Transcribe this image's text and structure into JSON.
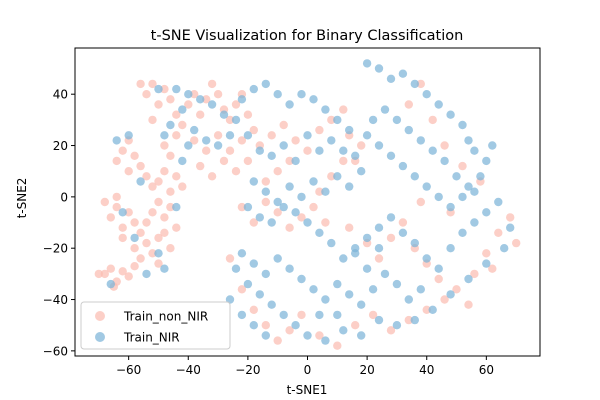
{
  "chart_data": {
    "type": "scatter",
    "title": "t-SNE Visualization for Binary Classification",
    "xlabel": "t-SNE1",
    "ylabel": "t-SNE2",
    "xlim": [
      -78,
      78
    ],
    "ylim": [
      -62,
      58
    ],
    "xticks": [
      -60,
      -40,
      -20,
      0,
      20,
      40,
      60
    ],
    "yticks": [
      -60,
      -40,
      -20,
      0,
      20,
      40
    ],
    "xtick_labels": [
      "−60",
      "−40",
      "−20",
      "0",
      "20",
      "40",
      "60"
    ],
    "ytick_labels": [
      "−60",
      "−40",
      "−20",
      "0",
      "20",
      "40"
    ],
    "grid": false,
    "legend_position": "lower-left",
    "series": [
      {
        "name": "Train_non_NIR",
        "color": "#fbbcb2",
        "points": [
          [
            -68,
            -30
          ],
          [
            -66,
            -28
          ],
          [
            -64,
            -33
          ],
          [
            -62,
            -29
          ],
          [
            -60,
            -31
          ],
          [
            -65,
            -35
          ],
          [
            -70,
            -30
          ],
          [
            -58,
            -27
          ],
          [
            -66,
            -8
          ],
          [
            -64,
            -4
          ],
          [
            -62,
            -12
          ],
          [
            -60,
            -6
          ],
          [
            -58,
            -10
          ],
          [
            -68,
            -2
          ],
          [
            -62,
            -16
          ],
          [
            -64,
            0
          ],
          [
            -58,
            -20
          ],
          [
            -56,
            -14
          ],
          [
            -54,
            -18
          ],
          [
            -52,
            -22
          ],
          [
            -50,
            -26
          ],
          [
            -56,
            -24
          ],
          [
            -54,
            -10
          ],
          [
            -52,
            -6
          ],
          [
            -50,
            -2
          ],
          [
            -48,
            -14
          ],
          [
            -46,
            -20
          ],
          [
            -50,
            -16
          ],
          [
            -48,
            -8
          ],
          [
            -44,
            -12
          ],
          [
            -46,
            -4
          ],
          [
            -64,
            14
          ],
          [
            -62,
            18
          ],
          [
            -60,
            10
          ],
          [
            -58,
            16
          ],
          [
            -56,
            12
          ],
          [
            -60,
            22
          ],
          [
            -54,
            8
          ],
          [
            -52,
            4
          ],
          [
            -50,
            6
          ],
          [
            -48,
            10
          ],
          [
            -46,
            2
          ],
          [
            -44,
            8
          ],
          [
            -42,
            4
          ],
          [
            -48,
            20
          ],
          [
            -46,
            16
          ],
          [
            -44,
            24
          ],
          [
            -52,
            30
          ],
          [
            -50,
            36
          ],
          [
            -48,
            42
          ],
          [
            -46,
            38
          ],
          [
            -44,
            32
          ],
          [
            -42,
            28
          ],
          [
            -40,
            36
          ],
          [
            -38,
            40
          ],
          [
            -54,
            40
          ],
          [
            -56,
            44
          ],
          [
            -52,
            44
          ],
          [
            -36,
            32
          ],
          [
            -34,
            38
          ],
          [
            -32,
            44
          ],
          [
            -30,
            40
          ],
          [
            -28,
            34
          ],
          [
            -26,
            30
          ],
          [
            -24,
            36
          ],
          [
            -22,
            40
          ],
          [
            -20,
            32
          ],
          [
            -18,
            26
          ],
          [
            -22,
            22
          ],
          [
            -26,
            18
          ],
          [
            -30,
            24
          ],
          [
            -34,
            18
          ],
          [
            -38,
            22
          ],
          [
            -36,
            12
          ],
          [
            -32,
            8
          ],
          [
            -28,
            14
          ],
          [
            -24,
            10
          ],
          [
            -20,
            14
          ],
          [
            -16,
            20
          ],
          [
            -12,
            24
          ],
          [
            -8,
            28
          ],
          [
            -4,
            22
          ],
          [
            0,
            18
          ],
          [
            -6,
            14
          ],
          [
            -10,
            10
          ],
          [
            -14,
            6
          ],
          [
            4,
            26
          ],
          [
            8,
            30
          ],
          [
            12,
            34
          ],
          [
            14,
            24
          ],
          [
            18,
            20
          ],
          [
            12,
            14
          ],
          [
            8,
            8
          ],
          [
            4,
            2
          ],
          [
            16,
            14
          ],
          [
            -22,
            -4
          ],
          [
            -18,
            -10
          ],
          [
            -14,
            -2
          ],
          [
            -10,
            -6
          ],
          [
            -6,
            -12
          ],
          [
            -2,
            -8
          ],
          [
            2,
            -4
          ],
          [
            6,
            -10
          ],
          [
            -26,
            -24
          ],
          [
            -22,
            -36
          ],
          [
            -18,
            -44
          ],
          [
            -14,
            -50
          ],
          [
            -10,
            -56
          ],
          [
            -6,
            -52
          ],
          [
            -2,
            -46
          ],
          [
            4,
            -54
          ],
          [
            10,
            -58
          ],
          [
            16,
            -50
          ],
          [
            22,
            -46
          ],
          [
            28,
            -52
          ],
          [
            34,
            -48
          ],
          [
            40,
            -44
          ],
          [
            46,
            -40
          ],
          [
            24,
            -24
          ],
          [
            28,
            -16
          ],
          [
            32,
            -10
          ],
          [
            36,
            -20
          ],
          [
            40,
            -26
          ],
          [
            44,
            -32
          ],
          [
            50,
            -36
          ],
          [
            56,
            -30
          ],
          [
            60,
            -22
          ],
          [
            64,
            -14
          ],
          [
            68,
            -8
          ],
          [
            70,
            -18
          ],
          [
            62,
            -28
          ],
          [
            54,
            -42
          ],
          [
            20,
            -18
          ],
          [
            14,
            -12
          ],
          [
            34,
            36
          ],
          [
            38,
            44
          ],
          [
            42,
            30
          ],
          [
            46,
            20
          ],
          [
            52,
            12
          ],
          [
            58,
            6
          ],
          [
            48,
            -6
          ],
          [
            38,
            -2
          ]
        ]
      },
      {
        "name": "Train_NIR",
        "color": "#7db4d8",
        "points": [
          [
            -64,
            22
          ],
          [
            -60,
            24
          ],
          [
            -56,
            6
          ],
          [
            -62,
            -6
          ],
          [
            -58,
            -16
          ],
          [
            -50,
            -22
          ],
          [
            -48,
            -28
          ],
          [
            -54,
            -30
          ],
          [
            -44,
            -4
          ],
          [
            -42,
            14
          ],
          [
            -48,
            24
          ],
          [
            -46,
            28
          ],
          [
            -42,
            34
          ],
          [
            -40,
            40
          ],
          [
            -36,
            38
          ],
          [
            -32,
            36
          ],
          [
            -28,
            32
          ],
          [
            -24,
            30
          ],
          [
            -22,
            38
          ],
          [
            -18,
            42
          ],
          [
            -14,
            44
          ],
          [
            -10,
            40
          ],
          [
            -6,
            36
          ],
          [
            -2,
            40
          ],
          [
            2,
            38
          ],
          [
            6,
            34
          ],
          [
            10,
            30
          ],
          [
            14,
            26
          ],
          [
            -50,
            42
          ],
          [
            -44,
            42
          ],
          [
            -38,
            26
          ],
          [
            -34,
            22
          ],
          [
            -30,
            20
          ],
          [
            -26,
            24
          ],
          [
            -40,
            20
          ],
          [
            -20,
            24
          ],
          [
            -16,
            18
          ],
          [
            -12,
            16
          ],
          [
            -8,
            20
          ],
          [
            -4,
            14
          ],
          [
            0,
            24
          ],
          [
            4,
            18
          ],
          [
            8,
            22
          ],
          [
            12,
            18
          ],
          [
            16,
            16
          ],
          [
            18,
            10
          ],
          [
            -18,
            6
          ],
          [
            -14,
            2
          ],
          [
            -10,
            -2
          ],
          [
            -6,
            4
          ],
          [
            -2,
            0
          ],
          [
            2,
            6
          ],
          [
            6,
            2
          ],
          [
            10,
            8
          ],
          [
            14,
            4
          ],
          [
            -20,
            -4
          ],
          [
            -16,
            -8
          ],
          [
            -12,
            -10
          ],
          [
            -8,
            -4
          ],
          [
            -4,
            -6
          ],
          [
            0,
            -10
          ],
          [
            4,
            -14
          ],
          [
            8,
            -18
          ],
          [
            12,
            -24
          ],
          [
            16,
            -20
          ],
          [
            20,
            -16
          ],
          [
            24,
            -12
          ],
          [
            28,
            -8
          ],
          [
            32,
            -14
          ],
          [
            36,
            -18
          ],
          [
            40,
            -24
          ],
          [
            44,
            -28
          ],
          [
            48,
            -20
          ],
          [
            52,
            -14
          ],
          [
            56,
            -10
          ],
          [
            60,
            -6
          ],
          [
            64,
            -2
          ],
          [
            68,
            -12
          ],
          [
            66,
            -20
          ],
          [
            60,
            -26
          ],
          [
            54,
            -32
          ],
          [
            48,
            -38
          ],
          [
            42,
            -44
          ],
          [
            36,
            -48
          ],
          [
            30,
            -50
          ],
          [
            24,
            -48
          ],
          [
            18,
            -54
          ],
          [
            12,
            -52
          ],
          [
            6,
            -56
          ],
          [
            0,
            -54
          ],
          [
            -4,
            -50
          ],
          [
            -8,
            -46
          ],
          [
            -12,
            -42
          ],
          [
            -16,
            -38
          ],
          [
            -20,
            -34
          ],
          [
            -24,
            -28
          ],
          [
            -22,
            -22
          ],
          [
            -18,
            -26
          ],
          [
            -14,
            -30
          ],
          [
            -10,
            -24
          ],
          [
            -6,
            -28
          ],
          [
            -2,
            -32
          ],
          [
            2,
            -36
          ],
          [
            6,
            -40
          ],
          [
            10,
            -34
          ],
          [
            14,
            -38
          ],
          [
            18,
            -42
          ],
          [
            22,
            -36
          ],
          [
            26,
            -30
          ],
          [
            30,
            -34
          ],
          [
            34,
            -40
          ],
          [
            38,
            -36
          ],
          [
            20,
            -28
          ],
          [
            16,
            -22
          ],
          [
            24,
            -20
          ],
          [
            20,
            52
          ],
          [
            24,
            50
          ],
          [
            28,
            46
          ],
          [
            32,
            48
          ],
          [
            36,
            44
          ],
          [
            40,
            40
          ],
          [
            44,
            36
          ],
          [
            48,
            32
          ],
          [
            52,
            28
          ],
          [
            54,
            22
          ],
          [
            56,
            18
          ],
          [
            60,
            14
          ],
          [
            62,
            20
          ],
          [
            58,
            8
          ],
          [
            54,
            4
          ],
          [
            50,
            8
          ],
          [
            46,
            14
          ],
          [
            42,
            18
          ],
          [
            38,
            22
          ],
          [
            34,
            26
          ],
          [
            30,
            30
          ],
          [
            26,
            34
          ],
          [
            22,
            30
          ],
          [
            20,
            24
          ],
          [
            24,
            20
          ],
          [
            28,
            16
          ],
          [
            32,
            12
          ],
          [
            36,
            8
          ],
          [
            40,
            4
          ],
          [
            44,
            0
          ],
          [
            48,
            -4
          ],
          [
            52,
            0
          ],
          [
            56,
            2
          ],
          [
            -26,
            -40
          ],
          [
            -22,
            -46
          ],
          [
            -18,
            -50
          ],
          [
            -14,
            -54
          ],
          [
            10,
            -46
          ],
          [
            4,
            -46
          ],
          [
            -66,
            -34
          ]
        ]
      }
    ],
    "legend": [
      {
        "label": "Train_non_NIR",
        "color": "#fbbcb2"
      },
      {
        "label": "Train_NIR",
        "color": "#7db4d8"
      }
    ]
  }
}
